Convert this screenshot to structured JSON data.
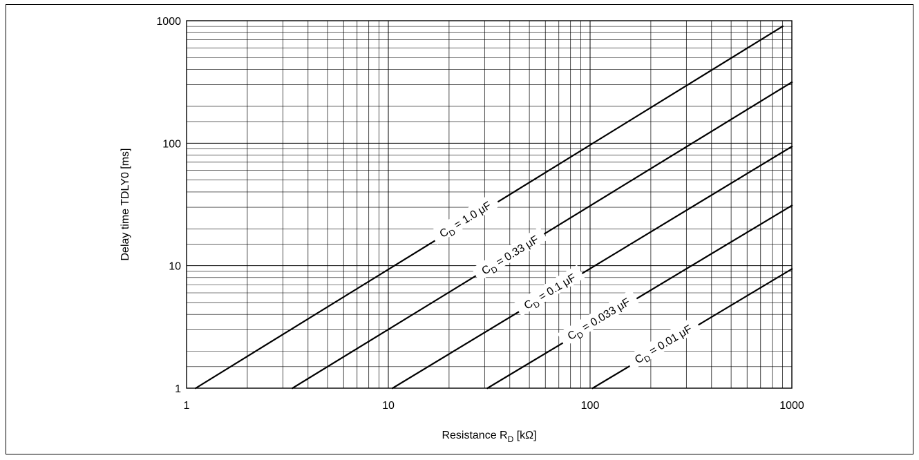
{
  "chart_data": {
    "type": "line",
    "xlabel": "Resistance  R",
    "xlabel_sub": "D",
    "xlabel_unit": "  [kΩ]",
    "ylabel": "Delay time   TDLY0  [ms]",
    "xscale": "log",
    "yscale": "log",
    "xlim": [
      1,
      1000
    ],
    "ylim": [
      1,
      1000
    ],
    "x_ticks": [
      "1",
      "10",
      "100",
      "1000"
    ],
    "y_ticks": [
      "1",
      "10",
      "100",
      "1000"
    ],
    "grid": true,
    "series": [
      {
        "label": "C",
        "sub": "D",
        "value": " = 1.0 μF",
        "x": [
          1.11,
          900
        ],
        "y": [
          1,
          900
        ]
      },
      {
        "label": "C",
        "sub": "D",
        "value": " = 0.33 μF",
        "x": [
          3.35,
          1000
        ],
        "y": [
          1,
          315
        ]
      },
      {
        "label": "C",
        "sub": "D",
        "value": " = 0.1 μF",
        "x": [
          10.5,
          1000
        ],
        "y": [
          1,
          94
        ]
      },
      {
        "label": "C",
        "sub": "D",
        "value": " = 0.033 μF",
        "x": [
          31,
          1000
        ],
        "y": [
          1,
          31
        ]
      },
      {
        "label": "C",
        "sub": "D",
        "value": " = 0.01 μF",
        "x": [
          103,
          1000
        ],
        "y": [
          1,
          9.4
        ]
      }
    ]
  }
}
